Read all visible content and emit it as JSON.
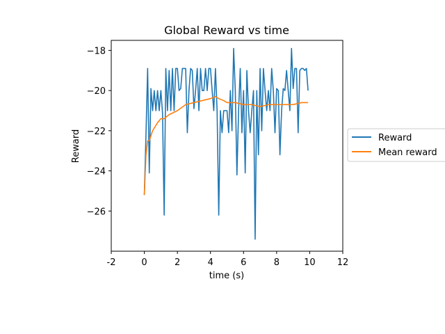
{
  "chart_data": {
    "type": "line",
    "title": "Global Reward vs time",
    "xlabel": "time (s)",
    "ylabel": "Reward",
    "xlim": [
      -2,
      12
    ],
    "ylim": [
      -28,
      -17.5
    ],
    "x_ticks": [
      -2,
      0,
      2,
      4,
      6,
      8,
      10,
      12
    ],
    "x_tick_labels": [
      "-2",
      "0",
      "2",
      "4",
      "6",
      "8",
      "10",
      "12"
    ],
    "y_ticks": [
      -26,
      -24,
      -22,
      -20,
      -18
    ],
    "y_tick_labels": [
      "−26",
      "−24",
      "−22",
      "−20",
      "−18"
    ],
    "grid": false,
    "legend_position": "outside right",
    "series": [
      {
        "name": "Reward",
        "color": "#1f77b4",
        "x": [
          0.0,
          0.1,
          0.2,
          0.3,
          0.4,
          0.5,
          0.6,
          0.7,
          0.8,
          0.9,
          1.0,
          1.1,
          1.2,
          1.3,
          1.4,
          1.5,
          1.6,
          1.7,
          1.8,
          1.9,
          2.0,
          2.1,
          2.2,
          2.3,
          2.4,
          2.5,
          2.6,
          2.7,
          2.8,
          2.9,
          3.0,
          3.1,
          3.2,
          3.3,
          3.4,
          3.5,
          3.6,
          3.7,
          3.8,
          3.9,
          4.0,
          4.1,
          4.2,
          4.3,
          4.4,
          4.5,
          4.6,
          4.7,
          4.8,
          4.9,
          5.0,
          5.1,
          5.2,
          5.3,
          5.4,
          5.5,
          5.6,
          5.7,
          5.8,
          5.9,
          6.0,
          6.1,
          6.2,
          6.3,
          6.4,
          6.5,
          6.6,
          6.7,
          6.8,
          6.9,
          7.0,
          7.1,
          7.2,
          7.3,
          7.4,
          7.5,
          7.6,
          7.7,
          7.8,
          7.9,
          8.0,
          8.1,
          8.2,
          8.3,
          8.4,
          8.5,
          8.6,
          8.7,
          8.8,
          8.9,
          9.0,
          9.1,
          9.2,
          9.3,
          9.4,
          9.5,
          9.6,
          9.7,
          9.8,
          9.9
        ],
        "y": [
          -25.2,
          -22.2,
          -18.9,
          -24.1,
          -19.9,
          -21.0,
          -20.0,
          -21.0,
          -20.0,
          -21.0,
          -20.0,
          -21.1,
          -26.2,
          -18.9,
          -21.0,
          -19.0,
          -21.0,
          -18.9,
          -21.0,
          -18.9,
          -18.9,
          -20.0,
          -19.9,
          -18.9,
          -18.9,
          -18.9,
          -22.1,
          -20.0,
          -18.9,
          -19.0,
          -20.9,
          -20.0,
          -18.9,
          -21.0,
          -18.9,
          -20.0,
          -20.0,
          -18.9,
          -20.0,
          -18.9,
          -18.9,
          -20.0,
          -21.0,
          -18.9,
          -21.0,
          -26.2,
          -21.0,
          -22.1,
          -21.0,
          -21.0,
          -21.0,
          -22.1,
          -20.0,
          -22.0,
          -17.9,
          -20.0,
          -24.2,
          -21.0,
          -18.9,
          -22.1,
          -20.0,
          -24.1,
          -19.0,
          -21.0,
          -22.1,
          -21.0,
          -20.0,
          -27.4,
          -20.0,
          -23.2,
          -18.9,
          -22.0,
          -18.9,
          -20.0,
          -21.0,
          -20.0,
          -21.0,
          -18.9,
          -20.0,
          -22.1,
          -19.9,
          -20.0,
          -23.2,
          -21.0,
          -19.9,
          -20.0,
          -19.0,
          -20.0,
          -21.0,
          -17.9,
          -19.9,
          -18.9,
          -18.9,
          -22.1,
          -19.0,
          -18.9,
          -18.9,
          -19.0,
          -18.9,
          -20.0
        ]
      },
      {
        "name": "Mean reward",
        "color": "#ff7f0e",
        "x": [
          0.0,
          0.1,
          0.2,
          0.3,
          0.5,
          0.8,
          1.0,
          1.2,
          1.5,
          2.0,
          2.5,
          3.0,
          3.5,
          4.0,
          4.3,
          4.5,
          4.8,
          5.0,
          5.5,
          6.0,
          6.5,
          7.0,
          7.5,
          8.0,
          8.5,
          9.0,
          9.5,
          9.9
        ],
        "y": [
          -25.2,
          -23.2,
          -22.5,
          -22.5,
          -22.0,
          -21.6,
          -21.4,
          -21.4,
          -21.2,
          -21.0,
          -20.7,
          -20.6,
          -20.5,
          -20.4,
          -20.3,
          -20.4,
          -20.5,
          -20.6,
          -20.6,
          -20.7,
          -20.7,
          -20.8,
          -20.7,
          -20.7,
          -20.7,
          -20.7,
          -20.6,
          -20.6
        ]
      }
    ]
  }
}
